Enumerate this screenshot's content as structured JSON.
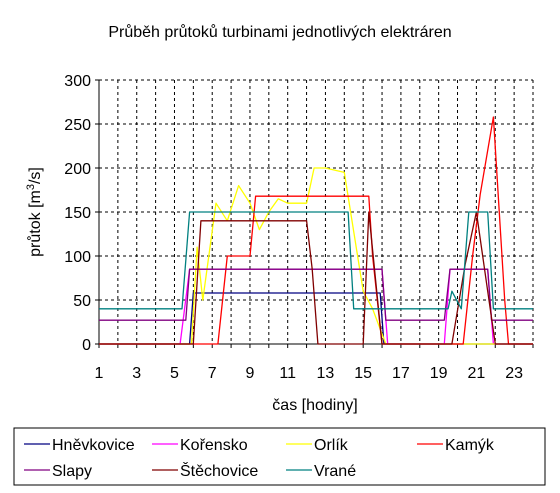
{
  "chart_data": {
    "type": "line",
    "title": "Průběh průtoků turbinami jednotlivých elektráren",
    "xlabel": "čas [hodiny]",
    "ylabel_main": "průtok [m",
    "ylabel_sup": "3",
    "ylabel_tail": "/s]",
    "xlim": [
      1,
      24
    ],
    "ylim": [
      0,
      300
    ],
    "x_ticks": [
      1,
      3,
      5,
      7,
      9,
      11,
      13,
      15,
      17,
      19,
      21,
      23
    ],
    "y_ticks": [
      0,
      50,
      100,
      150,
      200,
      250,
      300
    ],
    "grid": true,
    "legend_position": "bottom",
    "series": [
      {
        "name": "Hněvkovice",
        "color": "#000080",
        "points": [
          [
            1,
            0
          ],
          [
            5.8,
            0
          ],
          [
            6,
            58
          ],
          [
            15.9,
            58
          ],
          [
            16.1,
            0
          ],
          [
            24,
            0
          ]
        ]
      },
      {
        "name": "Kořensko",
        "color": "#ff00ff",
        "points": [
          [
            1,
            0
          ],
          [
            5.3,
            0
          ],
          [
            5.8,
            85
          ],
          [
            16,
            85
          ],
          [
            16.3,
            0
          ],
          [
            19.3,
            0
          ],
          [
            19.6,
            85
          ],
          [
            21.6,
            85
          ],
          [
            21.9,
            0
          ],
          [
            24,
            0
          ]
        ]
      },
      {
        "name": "Orlík",
        "color": "#ffff00",
        "points": [
          [
            1,
            0
          ],
          [
            5.9,
            0
          ],
          [
            6.2,
            110
          ],
          [
            6.5,
            50
          ],
          [
            7.2,
            160
          ],
          [
            7.8,
            140
          ],
          [
            8.4,
            180
          ],
          [
            9,
            160
          ],
          [
            9.5,
            130
          ],
          [
            10,
            150
          ],
          [
            10.5,
            165
          ],
          [
            11,
            160
          ],
          [
            12,
            160
          ],
          [
            12.4,
            200
          ],
          [
            13,
            200
          ],
          [
            14,
            195
          ],
          [
            15,
            60
          ],
          [
            15.5,
            40
          ],
          [
            16.2,
            0
          ],
          [
            24,
            0
          ]
        ]
      },
      {
        "name": "Kamýk",
        "color": "#ff0000",
        "points": [
          [
            1,
            0
          ],
          [
            7.3,
            0
          ],
          [
            7.8,
            100
          ],
          [
            9,
            100
          ],
          [
            9.3,
            168
          ],
          [
            15.3,
            168
          ],
          [
            15.5,
            100
          ],
          [
            16,
            0
          ],
          [
            20.3,
            0
          ],
          [
            20.8,
            100
          ],
          [
            21.2,
            170
          ],
          [
            21.9,
            258
          ],
          [
            22.5,
            50
          ],
          [
            22.7,
            0
          ],
          [
            24,
            0
          ]
        ]
      },
      {
        "name": "Slapy",
        "color": "#800080",
        "points": [
          [
            1,
            27
          ],
          [
            5.6,
            27
          ],
          [
            5.8,
            85
          ],
          [
            16,
            85
          ],
          [
            16.2,
            27
          ],
          [
            19.3,
            27
          ],
          [
            19.6,
            85
          ],
          [
            21.6,
            85
          ],
          [
            21.8,
            27
          ],
          [
            24,
            27
          ]
        ]
      },
      {
        "name": "Štěchovice",
        "color": "#800000",
        "points": [
          [
            1,
            0
          ],
          [
            6,
            0
          ],
          [
            6.4,
            140
          ],
          [
            12,
            140
          ],
          [
            12.3,
            85
          ],
          [
            12.6,
            0
          ],
          [
            15,
            0
          ],
          [
            15.3,
            150
          ],
          [
            16,
            0
          ],
          [
            19.7,
            0
          ],
          [
            20.4,
            90
          ],
          [
            21,
            150
          ],
          [
            21.6,
            60
          ],
          [
            22,
            0
          ],
          [
            24,
            0
          ]
        ]
      },
      {
        "name": "Vrané",
        "color": "#008080",
        "points": [
          [
            1,
            40
          ],
          [
            5.4,
            40
          ],
          [
            5.8,
            150
          ],
          [
            14.2,
            150
          ],
          [
            14.5,
            40
          ],
          [
            19.5,
            40
          ],
          [
            19.7,
            60
          ],
          [
            20.2,
            40
          ],
          [
            20.6,
            150
          ],
          [
            21.6,
            150
          ],
          [
            21.9,
            40
          ],
          [
            24,
            40
          ]
        ]
      }
    ]
  }
}
